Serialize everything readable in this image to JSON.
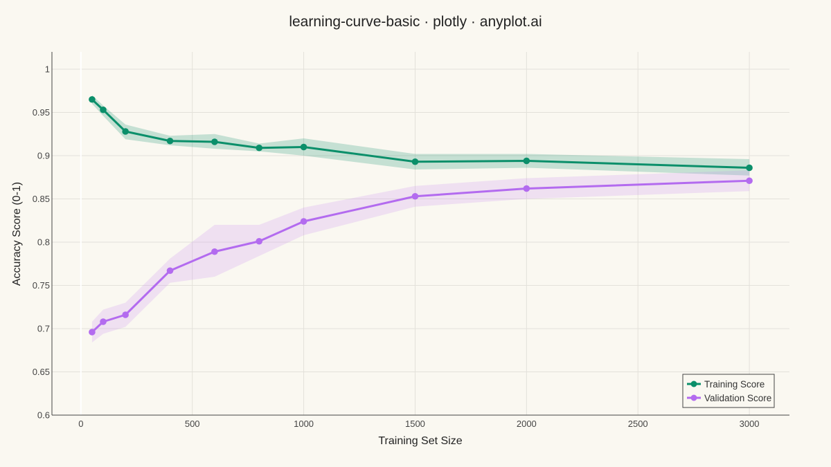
{
  "chart_data": {
    "type": "line",
    "title": "learning-curve-basic · plotly · anyplot.ai",
    "xlabel": "Training Set Size",
    "ylabel": "Accuracy Score (0-1)",
    "xlim": [
      -130,
      3180
    ],
    "ylim": [
      0.6,
      1.02
    ],
    "xticks": [
      0,
      500,
      1000,
      1500,
      2000,
      2500,
      3000
    ],
    "yticks": [
      0.6,
      0.65,
      0.7,
      0.75,
      0.8,
      0.85,
      0.9,
      0.95,
      1
    ],
    "grid": true,
    "legend_position": "bottom-right",
    "x": [
      50,
      100,
      200,
      400,
      600,
      800,
      1000,
      1500,
      2000,
      3000
    ],
    "series": [
      {
        "name": "Training Score",
        "color": "#0B8F6A",
        "band_color": "#0B8F6A",
        "values": [
          0.965,
          0.953,
          0.928,
          0.917,
          0.916,
          0.909,
          0.91,
          0.893,
          0.894,
          0.886
        ],
        "upper": [
          0.97,
          0.958,
          0.936,
          0.923,
          0.925,
          0.914,
          0.92,
          0.902,
          0.902,
          0.896
        ],
        "lower": [
          0.96,
          0.946,
          0.919,
          0.912,
          0.908,
          0.905,
          0.9,
          0.884,
          0.886,
          0.877
        ]
      },
      {
        "name": "Validation Score",
        "color": "#B36BEF",
        "band_color": "#C88BF2",
        "values": [
          0.696,
          0.708,
          0.716,
          0.767,
          0.789,
          0.801,
          0.824,
          0.853,
          0.862,
          0.871
        ],
        "upper": [
          0.708,
          0.722,
          0.73,
          0.781,
          0.82,
          0.82,
          0.84,
          0.865,
          0.874,
          0.883
        ],
        "lower": [
          0.684,
          0.694,
          0.702,
          0.753,
          0.76,
          0.784,
          0.808,
          0.841,
          0.85,
          0.859
        ]
      }
    ]
  }
}
